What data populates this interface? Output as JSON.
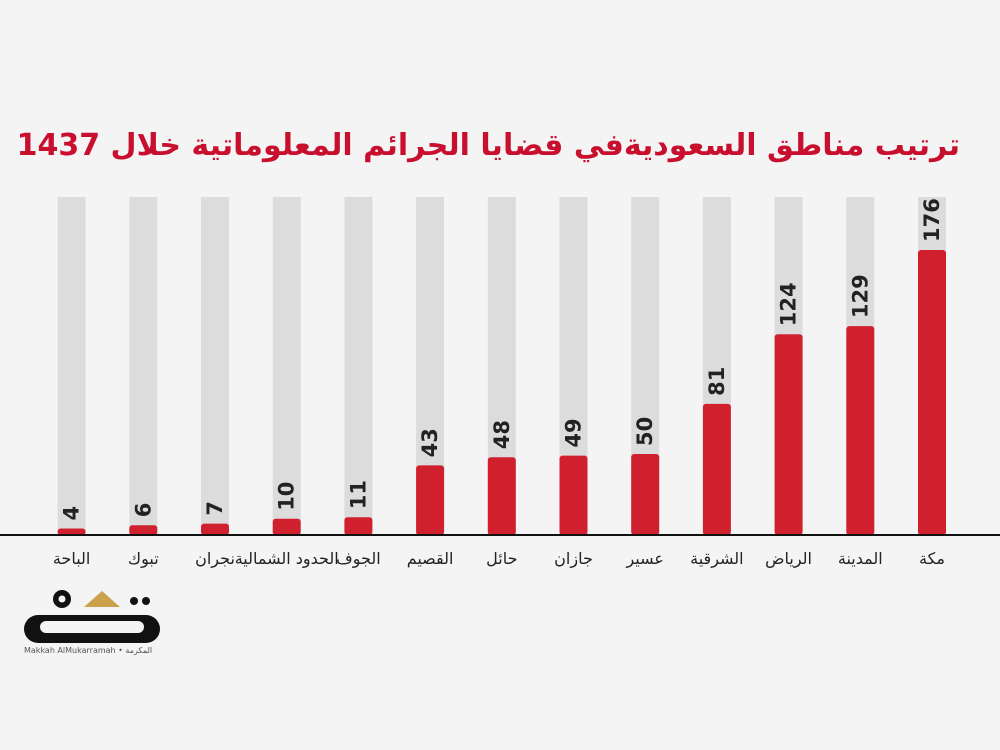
{
  "chart_data": {
    "type": "bar",
    "title": "ترتيب مناطق السعوديةفي قضايا الجرائم المعلوماتية خلال 1437",
    "categories": [
      "مكة",
      "المدينة",
      "الرياض",
      "الشرقية",
      "عسير",
      "جازان",
      "حائل",
      "القصيم",
      "الجوف",
      "الحدود الشمالية",
      "نجران",
      "تبوك",
      "الباحة"
    ],
    "values": [
      176,
      129,
      124,
      81,
      50,
      49,
      48,
      43,
      11,
      10,
      7,
      6,
      4
    ],
    "ylim": [
      0,
      200
    ],
    "xlabel": "",
    "ylabel": "",
    "grid": false,
    "legend": "none"
  },
  "colors": {
    "bar": "#d0202e",
    "track": "#dcdcdc",
    "title": "#c8102e",
    "background": "#f4f4f4"
  },
  "logo": {
    "name": "مكة",
    "caption": "Makkah AlMukarramah • المكرمة"
  }
}
